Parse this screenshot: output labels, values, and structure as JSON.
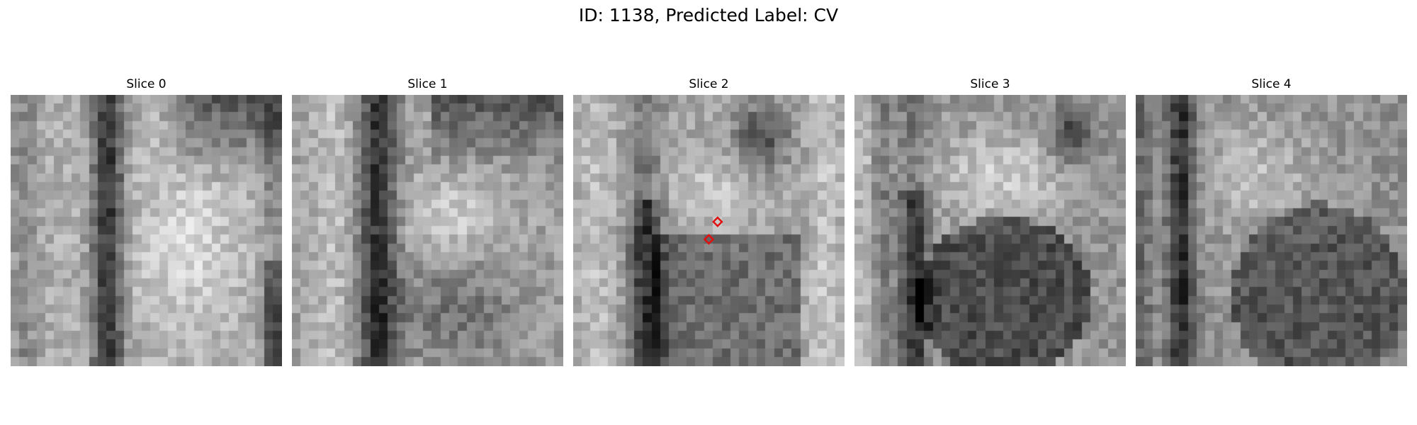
{
  "figure": {
    "title": "ID: 1138, Predicted Label: CV"
  },
  "panels": [
    {
      "title": "Slice 0",
      "seed": 11,
      "pattern": "s0"
    },
    {
      "title": "Slice 1",
      "seed": 23,
      "pattern": "s1"
    },
    {
      "title": "Slice 2",
      "seed": 37,
      "pattern": "s2"
    },
    {
      "title": "Slice 3",
      "seed": 53,
      "pattern": "s3"
    },
    {
      "title": "Slice 4",
      "seed": 71,
      "pattern": "s4"
    }
  ],
  "image_grid": {
    "cells": 31
  },
  "markers": {
    "color": "#e01010",
    "shape": "diamond",
    "panel": 2,
    "points": [
      {
        "col": 16.5,
        "row": 14.5
      },
      {
        "col": 15.5,
        "row": 16.5
      }
    ]
  },
  "colormap": "gray"
}
